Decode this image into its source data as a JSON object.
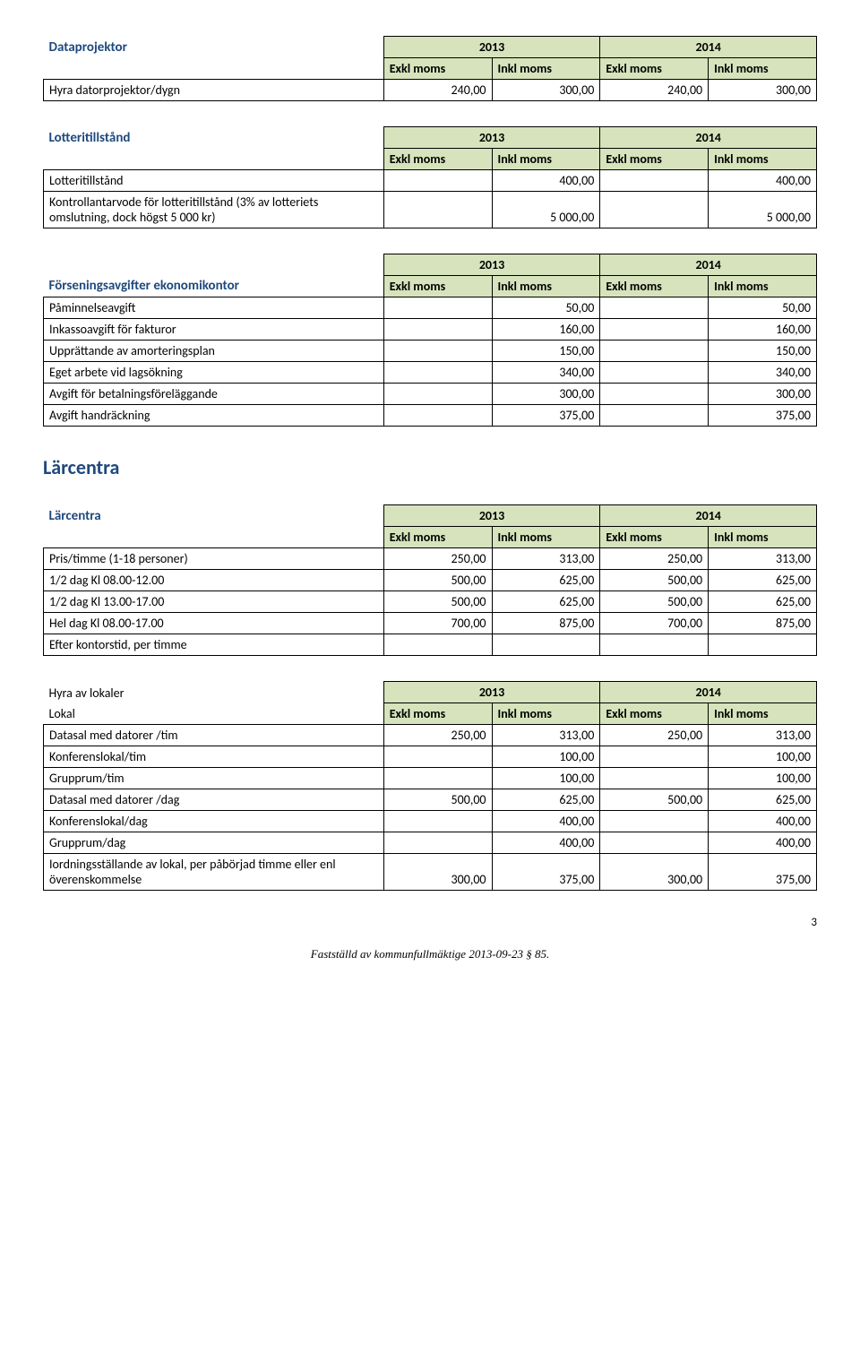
{
  "colors": {
    "heading": "#1f497d",
    "header_bg": "#d7e3bc",
    "border": "#000000",
    "text": "#000000",
    "background": "#ffffff"
  },
  "year_labels": {
    "y2013": "2013",
    "y2014": "2014"
  },
  "sub_headers": {
    "exkl_moms": "Exkl moms",
    "inkl_moms": "Inkl moms",
    "exkl_moms_2": "Exkl moms",
    "inkl_moms_2": "Inkl moms"
  },
  "table1": {
    "title": "Dataprojektor",
    "rows": [
      {
        "label": "Hyra datorprojektor/dygn",
        "v": [
          "240,00",
          "300,00",
          "240,00",
          "300,00"
        ]
      }
    ]
  },
  "table2": {
    "title": "Lotteritillstånd",
    "rows": [
      {
        "label": "Lotteritillstånd",
        "v": [
          "",
          "400,00",
          "",
          "400,00"
        ]
      },
      {
        "label": "Kontrollantarvode för lotteritillstånd (3% av lotteriets omslutning, dock högst 5 000 kr)",
        "v": [
          "",
          "5 000,00",
          "",
          "5 000,00"
        ]
      }
    ]
  },
  "table3": {
    "title": "Förseningsavgifter ekonomikontor",
    "rows": [
      {
        "label": "Påminnelseavgift",
        "v": [
          "",
          "50,00",
          "",
          "50,00"
        ]
      },
      {
        "label": "Inkassoavgift för fakturor",
        "v": [
          "",
          "160,00",
          "",
          "160,00"
        ]
      },
      {
        "label": "Upprättande av amorteringsplan",
        "v": [
          "",
          "150,00",
          "",
          "150,00"
        ]
      },
      {
        "label": "Eget arbete vid lagsökning",
        "v": [
          "",
          "340,00",
          "",
          "340,00"
        ]
      },
      {
        "label": "Avgift för betalningsföreläggande",
        "v": [
          "",
          "300,00",
          "",
          "300,00"
        ]
      },
      {
        "label": "Avgift handräckning",
        "v": [
          "",
          "375,00",
          "",
          "375,00"
        ]
      }
    ]
  },
  "larcentra_heading": "Lärcentra",
  "table4": {
    "title": "Lärcentra",
    "rows": [
      {
        "label": "Pris/timme (1-18 personer)",
        "v": [
          "250,00",
          "313,00",
          "250,00",
          "313,00"
        ]
      },
      {
        "label": "1/2 dag Kl 08.00-12.00",
        "v": [
          "500,00",
          "625,00",
          "500,00",
          "625,00"
        ]
      },
      {
        "label": "1/2 dag Kl 13.00-17.00",
        "v": [
          "500,00",
          "625,00",
          "500,00",
          "625,00"
        ]
      },
      {
        "label": "Hel dag Kl 08.00-17.00",
        "v": [
          "700,00",
          "875,00",
          "700,00",
          "875,00"
        ]
      },
      {
        "label": "Efter kontorstid, per timme",
        "v": [
          "",
          "",
          "",
          ""
        ]
      }
    ]
  },
  "table5": {
    "title": "Hyra av lokaler",
    "sublabel": "Lokal",
    "rows": [
      {
        "label": "Datasal med datorer /tim",
        "v": [
          "250,00",
          "313,00",
          "250,00",
          "313,00"
        ]
      },
      {
        "label": "Konferenslokal/tim",
        "v": [
          "",
          "100,00",
          "",
          "100,00"
        ]
      },
      {
        "label": "Grupprum/tim",
        "v": [
          "",
          "100,00",
          "",
          "100,00"
        ]
      },
      {
        "label": "Datasal med datorer /dag",
        "v": [
          "500,00",
          "625,00",
          "500,00",
          "625,00"
        ]
      },
      {
        "label": "Konferenslokal/dag",
        "v": [
          "",
          "400,00",
          "",
          "400,00"
        ]
      },
      {
        "label": "Grupprum/dag",
        "v": [
          "",
          "400,00",
          "",
          "400,00"
        ]
      },
      {
        "label": "Iordningsställande av lokal, per påbörjad timme eller enl överenskommelse",
        "v": [
          "300,00",
          "375,00",
          "300,00",
          "375,00"
        ]
      }
    ]
  },
  "footer": "Fastställd av kommunfullmäktige 2013-09-23 § 85.",
  "page_number": "3"
}
